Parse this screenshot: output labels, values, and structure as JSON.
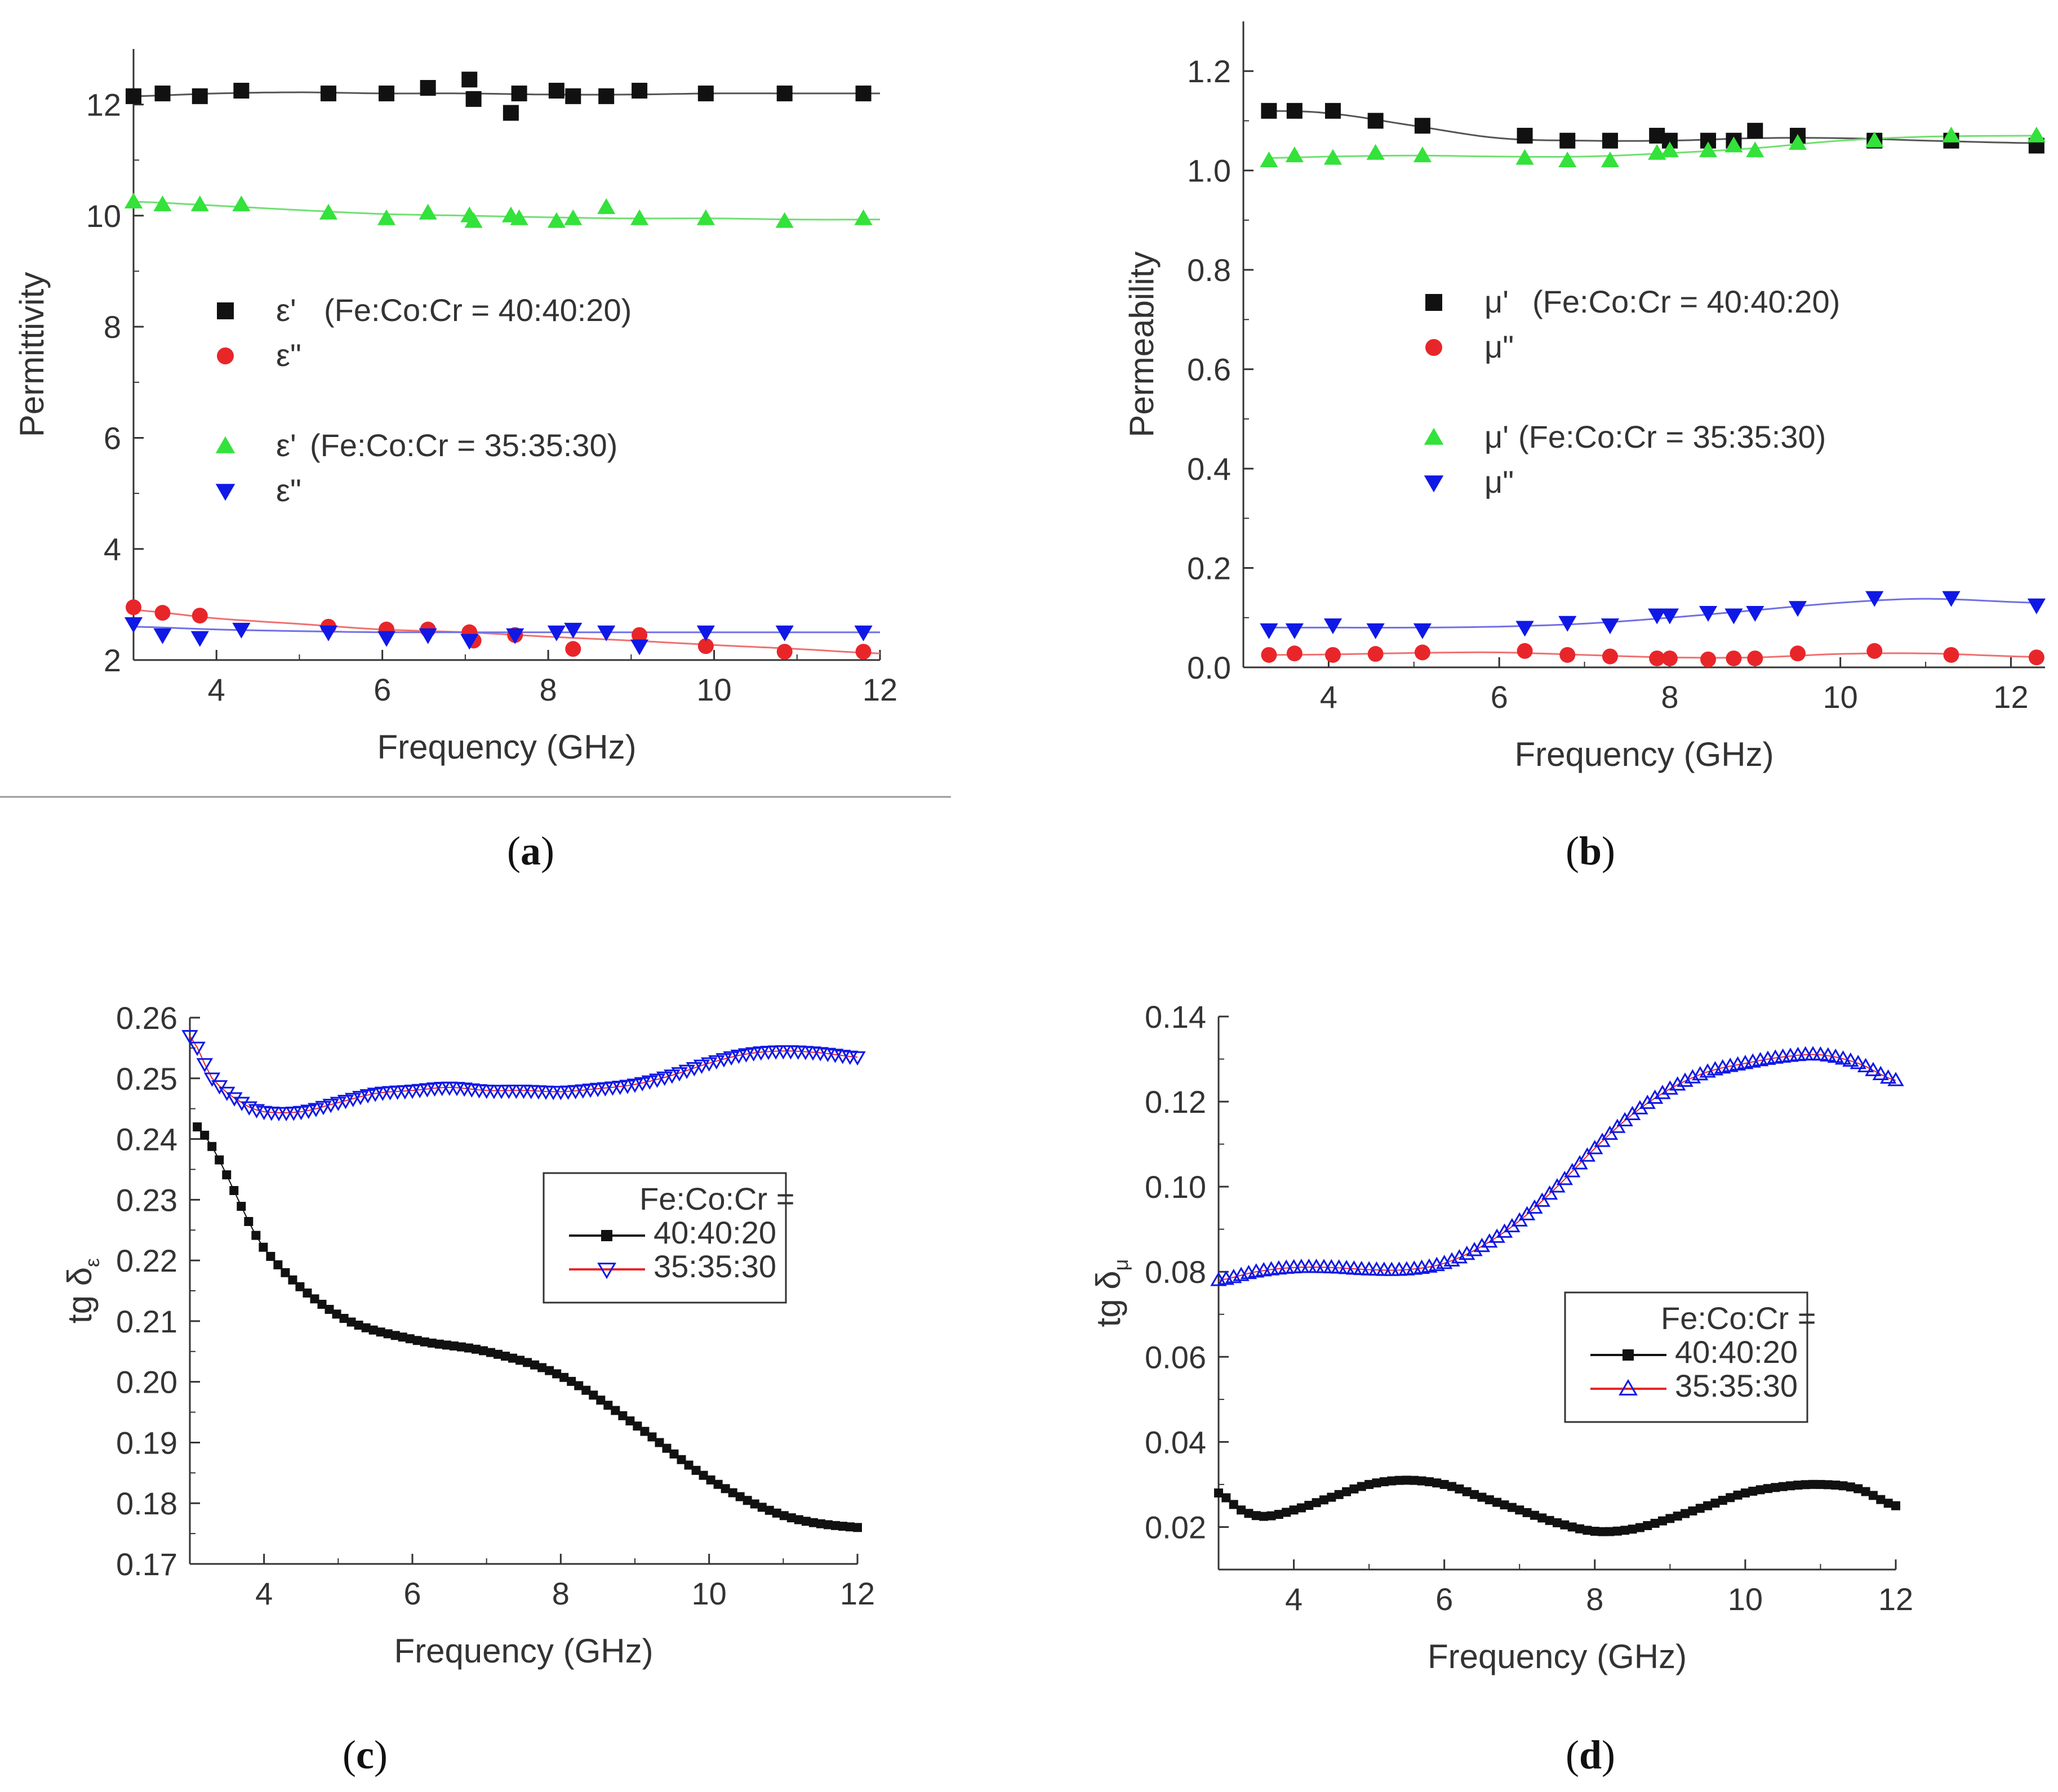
{
  "colors": {
    "black": "#111111",
    "red": "#e8262a",
    "green": "#33e23a",
    "blue": "#1018e6",
    "fit_black": "#555555",
    "fit_red": "#f07070",
    "fit_green": "#70e070",
    "fit_blue": "#7070e6"
  },
  "chart_data": [
    {
      "id": "a",
      "panel_label": "a",
      "type": "scatter",
      "xlabel": "Frequency (GHz)",
      "ylabel": "Permittivity",
      "xlim": [
        3,
        12
      ],
      "ylim": [
        2,
        13
      ],
      "xticks": [
        4,
        6,
        8,
        10,
        12
      ],
      "xtick_labels": [
        "4",
        "6",
        "8",
        "10",
        "12"
      ],
      "yticks": [
        2,
        4,
        6,
        8,
        10,
        12
      ],
      "ytick_labels": [
        "2",
        "4",
        "6",
        "8",
        "10",
        "12"
      ],
      "legend": [
        {
          "marker": "square",
          "color": "black",
          "symbol": "ε'",
          "label": "(Fe:Co:Cr = 40:40:20)"
        },
        {
          "marker": "circle",
          "color": "red",
          "symbol": "ε\"",
          "label": ""
        },
        {
          "marker": "triangle-up",
          "color": "green",
          "symbol": "ε'",
          "label": "(Fe:Co:Cr = 35:35:30)"
        },
        {
          "marker": "triangle-down",
          "color": "blue",
          "symbol": "ε\"",
          "label": ""
        }
      ],
      "series": [
        {
          "name": "ε' (Fe:Co:Cr = 40:40:20)",
          "marker": "square",
          "color": "black",
          "x": [
            3.0,
            3.35,
            3.8,
            4.3,
            5.35,
            6.05,
            6.55,
            7.05,
            7.1,
            7.55,
            7.65,
            8.1,
            8.3,
            8.7,
            9.1,
            9.9,
            10.85,
            11.8
          ],
          "y": [
            12.15,
            12.2,
            12.15,
            12.25,
            12.2,
            12.2,
            12.3,
            12.45,
            12.1,
            11.85,
            12.2,
            12.25,
            12.15,
            12.15,
            12.25,
            12.2,
            12.2,
            12.2
          ],
          "fit_x": [
            3,
            4,
            5,
            6,
            7,
            8,
            9,
            10,
            11,
            12
          ],
          "fit_y": [
            12.15,
            12.2,
            12.22,
            12.2,
            12.2,
            12.18,
            12.18,
            12.2,
            12.2,
            12.2
          ]
        },
        {
          "name": "ε\" (Fe:Co:Cr = 40:40:20)",
          "marker": "circle",
          "color": "red",
          "x": [
            3.0,
            3.35,
            3.8,
            5.35,
            6.05,
            6.55,
            7.05,
            7.1,
            7.6,
            8.3,
            9.1,
            9.9,
            10.85,
            11.8
          ],
          "y": [
            2.95,
            2.85,
            2.8,
            2.6,
            2.55,
            2.55,
            2.5,
            2.35,
            2.45,
            2.2,
            2.45,
            2.25,
            2.15,
            2.15
          ],
          "fit_x": [
            3,
            4,
            5,
            6,
            7,
            8,
            9,
            10,
            11,
            12
          ],
          "fit_y": [
            2.9,
            2.75,
            2.65,
            2.55,
            2.5,
            2.42,
            2.35,
            2.27,
            2.2,
            2.12
          ]
        },
        {
          "name": "ε' (Fe:Co:Cr = 35:35:30)",
          "marker": "triangle-up",
          "color": "green",
          "x": [
            3.0,
            3.35,
            3.8,
            4.3,
            5.35,
            6.05,
            6.55,
            7.05,
            7.1,
            7.55,
            7.65,
            8.1,
            8.3,
            8.7,
            9.1,
            9.9,
            10.85,
            11.8
          ],
          "y": [
            10.25,
            10.2,
            10.2,
            10.2,
            10.05,
            9.95,
            10.05,
            10.0,
            9.9,
            10.0,
            9.95,
            9.9,
            9.95,
            10.15,
            9.95,
            9.95,
            9.9,
            9.95
          ],
          "fit_x": [
            3,
            4,
            5,
            6,
            7,
            8,
            9,
            10,
            11,
            12
          ],
          "fit_y": [
            10.25,
            10.18,
            10.1,
            10.03,
            10.0,
            9.97,
            9.95,
            9.95,
            9.93,
            9.93
          ]
        },
        {
          "name": "ε\" (Fe:Co:Cr = 35:35:30)",
          "marker": "triangle-down",
          "color": "blue",
          "x": [
            3.0,
            3.35,
            3.8,
            4.3,
            5.35,
            6.05,
            6.55,
            7.05,
            7.6,
            8.1,
            8.3,
            8.7,
            9.1,
            9.9,
            10.85,
            11.8
          ],
          "y": [
            2.65,
            2.45,
            2.4,
            2.55,
            2.5,
            2.4,
            2.45,
            2.35,
            2.45,
            2.5,
            2.55,
            2.5,
            2.25,
            2.5,
            2.5,
            2.5
          ],
          "fit_x": [
            3,
            4,
            5,
            6,
            7,
            8,
            9,
            10,
            11,
            12
          ],
          "fit_y": [
            2.6,
            2.55,
            2.52,
            2.5,
            2.5,
            2.5,
            2.5,
            2.5,
            2.5,
            2.5
          ]
        }
      ]
    },
    {
      "id": "b",
      "panel_label": "b",
      "type": "scatter",
      "xlabel": "Frequency (GHz)",
      "ylabel": "Permeability",
      "xlim": [
        3,
        12.4
      ],
      "ylim": [
        0,
        1.3
      ],
      "xticks": [
        4,
        6,
        8,
        10,
        12
      ],
      "xtick_labels": [
        "4",
        "6",
        "8",
        "10",
        "12"
      ],
      "yticks": [
        0.0,
        0.2,
        0.4,
        0.6,
        0.8,
        1.0,
        1.2
      ],
      "ytick_labels": [
        "0.0",
        "0.2",
        "0.4",
        "0.6",
        "0.8",
        "1.0",
        "1.2"
      ],
      "legend": [
        {
          "marker": "square",
          "color": "black",
          "symbol": "μ'",
          "label": "(Fe:Co:Cr = 40:40:20)"
        },
        {
          "marker": "circle",
          "color": "red",
          "symbol": "μ\"",
          "label": ""
        },
        {
          "marker": "triangle-up",
          "color": "green",
          "symbol": "μ'",
          "label": "(Fe:Co:Cr = 35:35:30)"
        },
        {
          "marker": "triangle-down",
          "color": "blue",
          "symbol": "μ\"",
          "label": ""
        }
      ],
      "series": [
        {
          "name": "μ' (Fe:Co:Cr = 40:40:20)",
          "marker": "square",
          "color": "black",
          "x": [
            3.3,
            3.6,
            4.05,
            4.55,
            5.1,
            6.3,
            6.8,
            7.3,
            7.85,
            8.0,
            8.45,
            8.75,
            9.0,
            9.5,
            10.4,
            11.3,
            12.3
          ],
          "y": [
            1.12,
            1.12,
            1.12,
            1.1,
            1.09,
            1.07,
            1.06,
            1.06,
            1.07,
            1.06,
            1.06,
            1.06,
            1.08,
            1.07,
            1.06,
            1.06,
            1.05
          ],
          "fit_x": [
            3.3,
            4,
            5,
            6,
            7,
            8,
            9,
            10,
            11,
            12.3
          ],
          "fit_y": [
            1.12,
            1.115,
            1.09,
            1.065,
            1.06,
            1.06,
            1.065,
            1.065,
            1.06,
            1.055
          ]
        },
        {
          "name": "μ\" (Fe:Co:Cr = 40:40:20)",
          "marker": "circle",
          "color": "red",
          "x": [
            3.3,
            3.6,
            4.05,
            4.55,
            5.1,
            6.3,
            6.8,
            7.3,
            7.85,
            8.0,
            8.45,
            8.75,
            9.0,
            9.5,
            10.4,
            11.3,
            12.3
          ],
          "y": [
            0.025,
            0.028,
            0.025,
            0.027,
            0.03,
            0.033,
            0.025,
            0.022,
            0.018,
            0.018,
            0.016,
            0.018,
            0.018,
            0.028,
            0.033,
            0.025,
            0.02
          ],
          "fit_x": [
            3.3,
            4,
            5,
            6,
            7,
            8,
            9,
            10,
            11,
            12.3
          ],
          "fit_y": [
            0.025,
            0.026,
            0.029,
            0.03,
            0.025,
            0.02,
            0.02,
            0.027,
            0.028,
            0.021
          ]
        },
        {
          "name": "μ' (Fe:Co:Cr = 35:35:30)",
          "marker": "triangle-up",
          "color": "green",
          "x": [
            3.3,
            3.6,
            4.05,
            4.55,
            5.1,
            6.3,
            6.8,
            7.3,
            7.85,
            8.0,
            8.45,
            8.75,
            9.0,
            9.5,
            10.4,
            11.3,
            12.3
          ],
          "y": [
            1.02,
            1.03,
            1.025,
            1.035,
            1.03,
            1.025,
            1.02,
            1.02,
            1.035,
            1.04,
            1.04,
            1.05,
            1.04,
            1.055,
            1.06,
            1.07,
            1.07
          ],
          "fit_x": [
            3.3,
            4,
            5,
            6,
            7,
            8,
            9,
            10,
            11,
            12.3
          ],
          "fit_y": [
            1.025,
            1.028,
            1.03,
            1.028,
            1.028,
            1.035,
            1.045,
            1.06,
            1.068,
            1.07
          ]
        },
        {
          "name": "μ\" (Fe:Co:Cr = 35:35:30)",
          "marker": "triangle-down",
          "color": "blue",
          "x": [
            3.3,
            3.6,
            4.05,
            4.55,
            5.1,
            6.3,
            6.8,
            7.3,
            7.85,
            8.0,
            8.45,
            8.75,
            9.0,
            9.5,
            10.4,
            11.3,
            12.3
          ],
          "y": [
            0.075,
            0.075,
            0.085,
            0.075,
            0.075,
            0.08,
            0.09,
            0.085,
            0.105,
            0.105,
            0.11,
            0.105,
            0.11,
            0.12,
            0.14,
            0.14,
            0.125
          ],
          "fit_x": [
            3.3,
            4,
            5,
            6,
            7,
            8,
            9,
            10,
            11,
            12.3
          ],
          "fit_y": [
            0.08,
            0.08,
            0.08,
            0.082,
            0.088,
            0.1,
            0.115,
            0.13,
            0.138,
            0.13
          ]
        }
      ]
    },
    {
      "id": "c",
      "panel_label": "c",
      "type": "line",
      "xlabel": "Frequency (GHz)",
      "ylabel": "tg δε",
      "ylabel_main": "tg δ",
      "ylabel_sub": "ε",
      "xlim": [
        3,
        12
      ],
      "ylim": [
        0.17,
        0.26
      ],
      "xticks": [
        4,
        6,
        8,
        10,
        12
      ],
      "xtick_labels": [
        "4",
        "6",
        "8",
        "10",
        "12"
      ],
      "yticks": [
        0.17,
        0.18,
        0.19,
        0.2,
        0.21,
        0.22,
        0.23,
        0.24,
        0.25,
        0.26
      ],
      "ytick_labels": [
        "0.17",
        "0.18",
        "0.19",
        "0.20",
        "0.21",
        "0.22",
        "0.23",
        "0.24",
        "0.25",
        "0.26"
      ],
      "legend_title": "Fe:Co:Cr =",
      "legend": [
        {
          "marker": "square",
          "label": "40:40:20"
        },
        {
          "marker": "triangle-down-open",
          "label": "35:35:30"
        }
      ],
      "series": [
        {
          "name": "40:40:20",
          "marker": "square",
          "x": [
            3.1,
            4,
            5,
            6,
            7,
            8,
            9,
            10,
            11,
            12
          ],
          "y": [
            0.242,
            0.222,
            0.211,
            0.207,
            0.205,
            0.201,
            0.193,
            0.184,
            0.178,
            0.176
          ]
        },
        {
          "name": "35:35:30",
          "marker": "triangle-down-open",
          "x": [
            3.0,
            3.3,
            3.7,
            4.0,
            4.5,
            5.0,
            5.5,
            6.0,
            6.5,
            7.0,
            7.5,
            8.0,
            8.5,
            9.0,
            9.5,
            10.0,
            10.5,
            11.0,
            11.5,
            12.0
          ],
          "y": [
            0.257,
            0.25,
            0.246,
            0.2445,
            0.2445,
            0.246,
            0.2475,
            0.248,
            0.2485,
            0.248,
            0.248,
            0.2478,
            0.2483,
            0.249,
            0.2505,
            0.2525,
            0.254,
            0.2545,
            0.2542,
            0.2535
          ]
        }
      ]
    },
    {
      "id": "d",
      "panel_label": "d",
      "type": "line",
      "xlabel": "Frequency (GHz)",
      "ylabel": "tg δμ",
      "ylabel_main": "tg δ",
      "ylabel_sub": "μ",
      "xlim": [
        3,
        12
      ],
      "ylim": [
        0.01,
        0.14
      ],
      "xticks": [
        4,
        6,
        8,
        10,
        12
      ],
      "xtick_labels": [
        "4",
        "6",
        "8",
        "10",
        "12"
      ],
      "yticks": [
        0.02,
        0.04,
        0.06,
        0.08,
        0.1,
        0.12,
        0.14
      ],
      "ytick_labels": [
        "0.02",
        "0.04",
        "0.06",
        "0.08",
        "0.10",
        "0.12",
        "0.14"
      ],
      "legend_title": "Fe:Co:Cr =",
      "legend": [
        {
          "marker": "square",
          "label": "40:40:20"
        },
        {
          "marker": "triangle-up-open",
          "label": "35:35:30"
        }
      ],
      "series": [
        {
          "name": "40:40:20",
          "marker": "square",
          "x": [
            3.0,
            3.3,
            3.6,
            4.0,
            4.5,
            5.0,
            5.5,
            6.0,
            6.5,
            7.0,
            7.5,
            8.0,
            8.5,
            9.0,
            9.5,
            10.0,
            10.5,
            11.0,
            11.5,
            12.0
          ],
          "y": [
            0.028,
            0.024,
            0.0225,
            0.024,
            0.027,
            0.03,
            0.031,
            0.03,
            0.027,
            0.024,
            0.021,
            0.019,
            0.0195,
            0.022,
            0.025,
            0.028,
            0.0295,
            0.03,
            0.029,
            0.025
          ]
        },
        {
          "name": "35:35:30",
          "marker": "triangle-up-open",
          "x": [
            3.0,
            3.5,
            4.0,
            4.5,
            5.0,
            5.5,
            6.0,
            6.5,
            7.0,
            7.5,
            8.0,
            8.5,
            9.0,
            9.5,
            10.0,
            10.5,
            11.0,
            11.5,
            12.0
          ],
          "y": [
            0.078,
            0.08,
            0.081,
            0.081,
            0.0805,
            0.0805,
            0.082,
            0.086,
            0.092,
            0.1,
            0.109,
            0.117,
            0.123,
            0.127,
            0.129,
            0.1305,
            0.131,
            0.129,
            0.125
          ]
        }
      ]
    }
  ]
}
